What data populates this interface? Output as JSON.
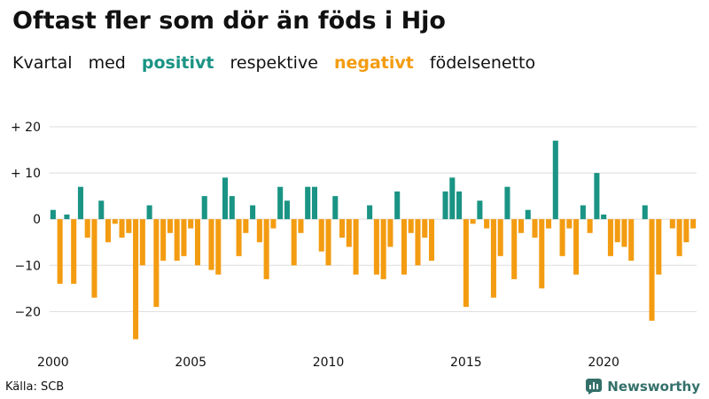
{
  "title": "Oftast fler som dör än föds i Hjo",
  "subtitle": {
    "parts": [
      "Kvartal",
      "med",
      "positivt",
      "respektive",
      "negativt",
      "födelsenetto"
    ]
  },
  "source": "Källa: SCB",
  "brand": {
    "name": "Newsworthy",
    "icon": "newsworthy-logo-icon"
  },
  "colors": {
    "positive": "#1a9484",
    "negative": "#f39c11",
    "grid": "#dddddd",
    "text": "#111111"
  },
  "chart_data": {
    "type": "bar",
    "x_start": "2000 Q1",
    "frequency": "quarterly",
    "values": [
      2,
      -14,
      1,
      -14,
      7,
      -4,
      -17,
      4,
      -5,
      -1,
      -4,
      -3,
      -26,
      -10,
      3,
      -19,
      -9,
      -3,
      -9,
      -8,
      -2,
      -10,
      5,
      -11,
      -12,
      9,
      5,
      -8,
      -3,
      3,
      -5,
      -13,
      -2,
      7,
      4,
      -10,
      -3,
      7,
      7,
      -7,
      -10,
      5,
      -4,
      -6,
      -12,
      0,
      3,
      -12,
      -13,
      -6,
      6,
      -12,
      -3,
      -10,
      -4,
      -9,
      0,
      6,
      9,
      6,
      -19,
      -1,
      4,
      -2,
      -17,
      -8,
      7,
      -13,
      -3,
      2,
      -4,
      -15,
      -2,
      17,
      -8,
      -2,
      -12,
      3,
      -3,
      10,
      1,
      -8,
      -5,
      -6,
      -9,
      0,
      3,
      -22,
      -12,
      0,
      -2,
      -8,
      -5,
      -2
    ],
    "ylim": [
      -28,
      20
    ],
    "y_ticks": [
      20,
      10,
      0,
      -10,
      -20
    ],
    "y_tick_labels": [
      "+ 20",
      "+ 10",
      "0",
      "−10",
      "−20"
    ],
    "x_ticks": [
      "2000",
      "2005",
      "2010",
      "2015",
      "2020"
    ],
    "grid": true,
    "legend": "none"
  }
}
